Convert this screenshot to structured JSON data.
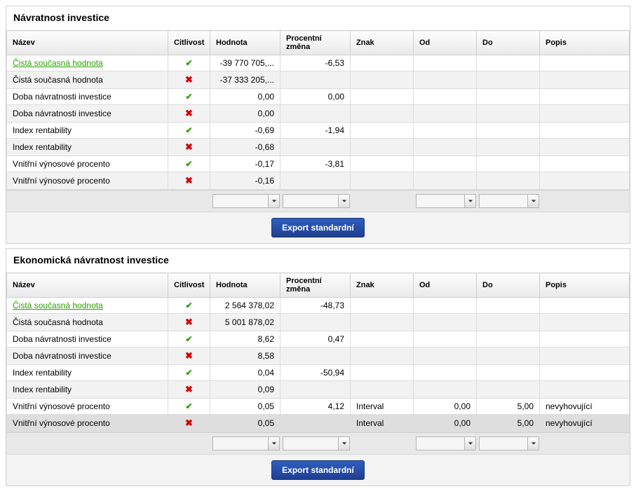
{
  "headers": {
    "nazev": "Název",
    "citlivost": "Citlivost",
    "hodnota": "Hodnota",
    "procentni_zmena": "Procentní změna",
    "znak": "Znak",
    "od": "Od",
    "do": "Do",
    "popis": "Popis"
  },
  "buttons": {
    "export": "Export standardní"
  },
  "section1": {
    "title": "Návratnost investice",
    "rows": [
      {
        "nazev": "Čistá současná hodnota",
        "link": true,
        "cit": "check",
        "hodnota": "-39 770 705,...",
        "pz": "-6,53",
        "znak": "",
        "od": "",
        "do": "",
        "popis": ""
      },
      {
        "nazev": "Čistá současná hodnota",
        "link": false,
        "cit": "cross",
        "hodnota": "-37 333 205,...",
        "pz": "",
        "znak": "",
        "od": "",
        "do": "",
        "popis": ""
      },
      {
        "nazev": "Doba návratnosti investice",
        "link": false,
        "cit": "check",
        "hodnota": "0,00",
        "pz": "0,00",
        "znak": "",
        "od": "",
        "do": "",
        "popis": ""
      },
      {
        "nazev": "Doba návratnosti investice",
        "link": false,
        "cit": "cross",
        "hodnota": "0,00",
        "pz": "",
        "znak": "",
        "od": "",
        "do": "",
        "popis": ""
      },
      {
        "nazev": "Index rentability",
        "link": false,
        "cit": "check",
        "hodnota": "-0,69",
        "pz": "-1,94",
        "znak": "",
        "od": "",
        "do": "",
        "popis": ""
      },
      {
        "nazev": "Index rentability",
        "link": false,
        "cit": "cross",
        "hodnota": "-0,68",
        "pz": "",
        "znak": "",
        "od": "",
        "do": "",
        "popis": ""
      },
      {
        "nazev": "Vnitřní výnosové procento",
        "link": false,
        "cit": "check",
        "hodnota": "-0,17",
        "pz": "-3,81",
        "znak": "",
        "od": "",
        "do": "",
        "popis": ""
      },
      {
        "nazev": "Vnitřní výnosové procento",
        "link": false,
        "cit": "cross",
        "hodnota": "-0,16",
        "pz": "",
        "znak": "",
        "od": "",
        "do": "",
        "popis": ""
      }
    ]
  },
  "section2": {
    "title": "Ekonomická návratnost investice",
    "rows": [
      {
        "nazev": "Čistá současná hodnota",
        "link": true,
        "cit": "check",
        "hodnota": "2 564 378,02",
        "pz": "-48,73",
        "znak": "",
        "od": "",
        "do": "",
        "popis": ""
      },
      {
        "nazev": "Čistá současná hodnota",
        "link": false,
        "cit": "cross",
        "hodnota": "5 001 878,02",
        "pz": "",
        "znak": "",
        "od": "",
        "do": "",
        "popis": ""
      },
      {
        "nazev": "Doba návratnosti investice",
        "link": false,
        "cit": "check",
        "hodnota": "8,62",
        "pz": "0,47",
        "znak": "",
        "od": "",
        "do": "",
        "popis": ""
      },
      {
        "nazev": "Doba návratnosti investice",
        "link": false,
        "cit": "cross",
        "hodnota": "8,58",
        "pz": "",
        "znak": "",
        "od": "",
        "do": "",
        "popis": ""
      },
      {
        "nazev": "Index rentability",
        "link": false,
        "cit": "check",
        "hodnota": "0,04",
        "pz": "-50,94",
        "znak": "",
        "od": "",
        "do": "",
        "popis": ""
      },
      {
        "nazev": "Index rentability",
        "link": false,
        "cit": "cross",
        "hodnota": "0,09",
        "pz": "",
        "znak": "",
        "od": "",
        "do": "",
        "popis": ""
      },
      {
        "nazev": "Vnitřní výnosové procento",
        "link": false,
        "cit": "check",
        "hodnota": "0,05",
        "pz": "4,12",
        "znak": "Interval",
        "od": "0,00",
        "do": "5,00",
        "popis": "nevyhovující"
      },
      {
        "nazev": "Vnitřní výnosové procento",
        "link": false,
        "cit": "cross",
        "hodnota": "0,05",
        "pz": "",
        "znak": "Interval",
        "od": "0,00",
        "do": "5,00",
        "popis": "nevyhovující",
        "sel": true
      }
    ]
  }
}
